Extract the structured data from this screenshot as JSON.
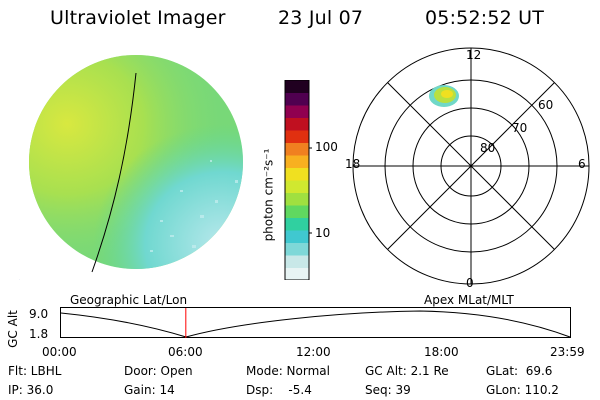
{
  "header": {
    "title": "Ultraviolet Imager",
    "date": "23 Jul 07",
    "time": "05:52:52 UT"
  },
  "colorbar": {
    "unit_label": "photon cm⁻²s⁻¹",
    "tick_labels": [
      "100",
      "10"
    ],
    "colors": [
      "#e8f4f4",
      "#c8e8e8",
      "#7ed8d8",
      "#40c8d0",
      "#30d0a0",
      "#60d860",
      "#a0e040",
      "#d0e830",
      "#f0e020",
      "#f8b020",
      "#f08020",
      "#e03010",
      "#c01020",
      "#900050",
      "#500050",
      "#200020"
    ]
  },
  "left_panel": {
    "caption": "Geographic Lat/Lon"
  },
  "polar_plot": {
    "caption": "Apex MLat/MLT",
    "mlt_labels": [
      "12",
      "18",
      "6",
      "0"
    ],
    "lat_labels": [
      "60",
      "70",
      "80"
    ]
  },
  "timeline": {
    "ylabel": "GC Alt",
    "y_ticks": [
      "9.0",
      "1.8"
    ],
    "x_ticks": [
      "00:00",
      "06:00",
      "12:00",
      "18:00",
      "23:59"
    ],
    "current_marker_time": "05:52:52",
    "marker_color": "#ff0000"
  },
  "info": {
    "flt": "Flt: LBHL",
    "ip": "IP: 36.0",
    "door": "Door: Open",
    "gain": "Gain: 14",
    "mode": "Mode: Normal",
    "dsp": "Dsp:    -5.4",
    "gcalt": "GC Alt: 2.1 Re",
    "seq": "Seq: 39",
    "glat": "GLat:  69.6",
    "glon": "GLon: 110.2"
  }
}
